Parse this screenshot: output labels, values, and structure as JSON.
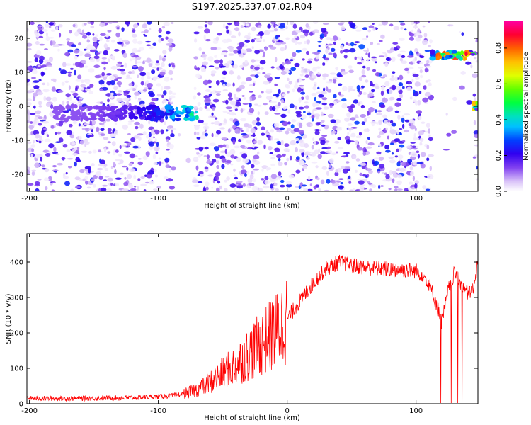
{
  "title": "S197.2025.337.07.02.R04",
  "chart_data": [
    {
      "type": "heatmap",
      "xlabel": "Height of straight line (km)",
      "ylabel": "Frequency (Hz)",
      "xlim": [
        -202,
        148
      ],
      "ylim": [
        -25,
        25
      ],
      "x_ticks": [
        -200,
        -100,
        0,
        100
      ],
      "y_ticks": [
        -20,
        -10,
        0,
        10,
        20
      ],
      "colorbar": {
        "label": "Normalized spectral amplitude",
        "range": [
          0,
          0.95
        ],
        "ticks": [
          "0.0",
          "0.2",
          "0.4",
          "0.6",
          "0.8"
        ]
      },
      "features": [
        {
          "name": "near-zero band",
          "x_range": [
            -180,
            -70
          ],
          "freq_range": [
            -4,
            0
          ],
          "peak_amplitude": 0.35
        },
        {
          "name": "high-frequency band",
          "x_range": [
            112,
            145
          ],
          "freq_range": [
            14,
            16
          ],
          "peak_amplitude": 0.8
        },
        {
          "name": "edge spot",
          "x_range": [
            145,
            148
          ],
          "freq_range": [
            -1,
            1
          ],
          "peak_amplitude": 0.6
        }
      ],
      "gaps_x": [
        [
          -88,
          -72
        ],
        [
          112,
          145
        ]
      ]
    },
    {
      "type": "line",
      "xlabel": "Height of straight line (km)",
      "ylabel": "SNR (10 * v/v)",
      "xlim": [
        -202,
        148
      ],
      "ylim": [
        0,
        480
      ],
      "x_ticks": [
        -200,
        -100,
        0,
        100
      ],
      "y_ticks": [
        0,
        100,
        200,
        300,
        400
      ],
      "series": [
        {
          "name": "SNR",
          "color": "#ff0000",
          "x": [
            -200,
            -180,
            -160,
            -140,
            -120,
            -100,
            -90,
            -80,
            -70,
            -60,
            -50,
            -40,
            -30,
            -20,
            -10,
            0,
            10,
            20,
            30,
            40,
            50,
            60,
            70,
            80,
            90,
            100,
            105,
            110,
            115,
            120,
            125,
            130,
            135,
            140,
            145,
            148
          ],
          "values": [
            15,
            15,
            15,
            16,
            17,
            20,
            22,
            28,
            40,
            60,
            85,
            110,
            140,
            170,
            200,
            240,
            290,
            340,
            380,
            400,
            390,
            385,
            382,
            380,
            378,
            375,
            365,
            340,
            290,
            230,
            320,
            370,
            340,
            310,
            330,
            400
          ]
        }
      ]
    }
  ]
}
